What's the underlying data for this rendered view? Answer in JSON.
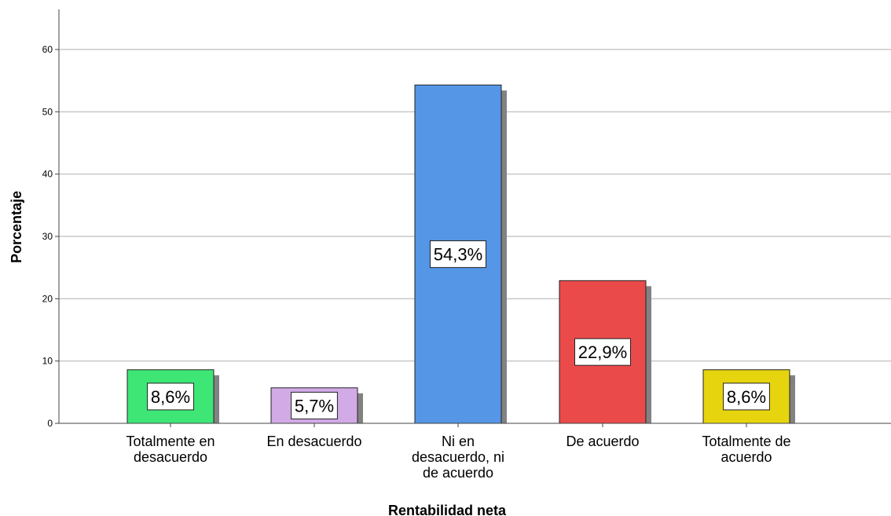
{
  "chart_data": {
    "type": "bar",
    "title": "",
    "xlabel": "Rentabilidad neta",
    "ylabel": "Porcentaje",
    "ylim": [
      0,
      66
    ],
    "yticks": [
      0,
      10,
      20,
      30,
      40,
      50,
      60
    ],
    "grid": true,
    "legend": "none",
    "categories": [
      [
        "Totalmente en",
        "desacuerdo"
      ],
      [
        "En desacuerdo"
      ],
      [
        "Ni en",
        "desacuerdo, ni",
        "de acuerdo"
      ],
      [
        "De acuerdo"
      ],
      [
        "Totalmente de",
        "acuerdo"
      ]
    ],
    "values": [
      8.6,
      5.7,
      54.3,
      22.9,
      8.6
    ],
    "data_labels": [
      "8,6%",
      "5,7%",
      "54,3%",
      "22,9%",
      "8,6%"
    ],
    "colors": [
      "#3ee676",
      "#d2aae6",
      "#5596e6",
      "#eb4a4a",
      "#e6d50e"
    ]
  }
}
